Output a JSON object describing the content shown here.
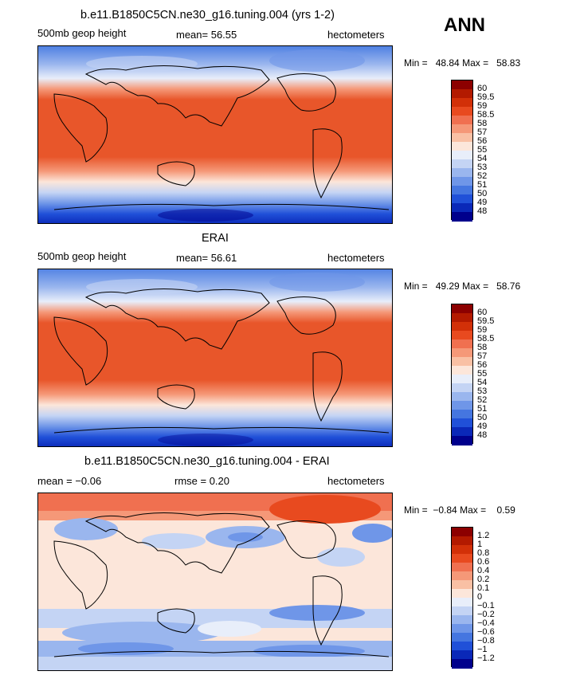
{
  "season": "ANN",
  "panels": [
    {
      "id": "model",
      "title": "b.e11.B1850C5CN.ne30_g16.tuning.004 (yrs 1-2)",
      "left_label": "500mb geop height",
      "center_label": "mean=  56.55",
      "units": "hectometers",
      "min_label": "Min =",
      "min_value": "48.84",
      "max_label": "Max =",
      "max_value": "58.83",
      "levels": [
        "60",
        "59.5",
        "59",
        "58.5",
        "58",
        "57",
        "56",
        "55",
        "54",
        "53",
        "52",
        "51",
        "50",
        "49",
        "48"
      ]
    },
    {
      "id": "obs",
      "title": "ERAI",
      "left_label": "500mb geop height",
      "center_label": "mean=  56.61",
      "units": "hectometers",
      "min_label": "Min =",
      "min_value": "49.29",
      "max_label": "Max =",
      "max_value": "58.76",
      "levels": [
        "60",
        "59.5",
        "59",
        "58.5",
        "58",
        "57",
        "56",
        "55",
        "54",
        "53",
        "52",
        "51",
        "50",
        "49",
        "48"
      ]
    },
    {
      "id": "diff",
      "title": "b.e11.B1850C5CN.ne30_g16.tuning.004 - ERAI",
      "left_label": "mean =  −0.06",
      "center_label": "rmse =    0.20",
      "units": "hectometers",
      "min_label": "Min =",
      "min_value": "−0.84",
      "max_label": "Max =",
      "max_value": "0.59",
      "levels": [
        "1.2",
        "1",
        "0.8",
        "0.6",
        "0.4",
        "0.2",
        "0.1",
        "0",
        "−0.1",
        "−0.2",
        "−0.4",
        "−0.6",
        "−0.8",
        "−1",
        "−1.2"
      ]
    }
  ],
  "colors": {
    "scale": [
      "#8c0000",
      "#b31a00",
      "#d23008",
      "#e84a1f",
      "#f07050",
      "#f59878",
      "#f9c0a4",
      "#fce6da",
      "#e8eefa",
      "#c4d4f4",
      "#9ab6ee",
      "#6f96e8",
      "#4576e0",
      "#2050d8",
      "#0a28b8",
      "#00008c"
    ]
  }
}
